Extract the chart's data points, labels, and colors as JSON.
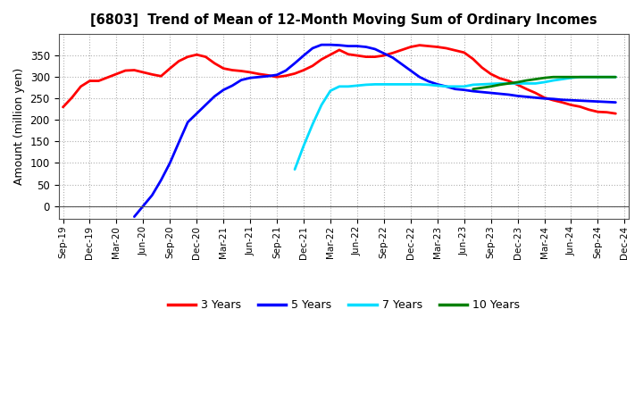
{
  "title": "[6803]  Trend of Mean of 12-Month Moving Sum of Ordinary Incomes",
  "ylabel": "Amount (million yen)",
  "ylim": [
    -30,
    400
  ],
  "yticks": [
    0,
    50,
    100,
    150,
    200,
    250,
    300,
    350
  ],
  "background_color": "#ffffff",
  "grid_color": "#b0b0b0",
  "series": {
    "3 Years": {
      "color": "#ff0000",
      "x": [
        0,
        1,
        2,
        3,
        4,
        5,
        6,
        7,
        8,
        9,
        10,
        11,
        12,
        13,
        14,
        15,
        16,
        17,
        18,
        19,
        20,
        21,
        22,
        23,
        24,
        25,
        26,
        27,
        28,
        29,
        30,
        31,
        32,
        33,
        34,
        35,
        36,
        37,
        38,
        39,
        40,
        41,
        42,
        43,
        44,
        45,
        46,
        47,
        48,
        49,
        50,
        51,
        52,
        53,
        54,
        55,
        56,
        57,
        58,
        59,
        60,
        61,
        62
      ],
      "y": [
        230,
        252,
        278,
        291,
        291,
        299,
        307,
        315,
        316,
        311,
        306,
        302,
        320,
        337,
        347,
        352,
        347,
        332,
        320,
        316,
        314,
        311,
        307,
        304,
        300,
        303,
        308,
        316,
        326,
        341,
        352,
        363,
        353,
        350,
        347,
        347,
        350,
        356,
        363,
        370,
        374,
        372,
        370,
        367,
        362,
        357,
        342,
        322,
        307,
        297,
        291,
        282,
        272,
        263,
        252,
        246,
        241,
        235,
        231,
        224,
        219,
        218,
        215
      ]
    },
    "5 Years": {
      "color": "#0000ff",
      "x": [
        8,
        9,
        10,
        11,
        12,
        13,
        14,
        15,
        16,
        17,
        18,
        19,
        20,
        21,
        22,
        23,
        24,
        25,
        26,
        27,
        28,
        29,
        30,
        31,
        32,
        33,
        34,
        35,
        36,
        37,
        38,
        39,
        40,
        41,
        42,
        43,
        44,
        45,
        46,
        47,
        48,
        49,
        50,
        51,
        52,
        53,
        54,
        55,
        56,
        57,
        58,
        59,
        60,
        61,
        62
      ],
      "y": [
        -25,
        0,
        25,
        60,
        100,
        148,
        195,
        215,
        235,
        255,
        270,
        280,
        293,
        298,
        300,
        302,
        305,
        315,
        332,
        350,
        367,
        375,
        375,
        374,
        372,
        372,
        370,
        365,
        355,
        345,
        330,
        315,
        300,
        290,
        283,
        278,
        272,
        270,
        267,
        265,
        263,
        261,
        259,
        256,
        254,
        252,
        250,
        249,
        247,
        246,
        245,
        244,
        243,
        242,
        241
      ]
    },
    "7 Years": {
      "color": "#00ddff",
      "x": [
        26,
        27,
        28,
        29,
        30,
        31,
        32,
        33,
        34,
        35,
        36,
        37,
        38,
        39,
        40,
        41,
        42,
        43,
        44,
        45,
        46,
        47,
        48,
        49,
        50,
        51,
        52,
        53,
        54,
        55,
        56,
        57,
        58,
        59,
        60,
        61,
        62
      ],
      "y": [
        85,
        140,
        190,
        235,
        268,
        278,
        278,
        280,
        282,
        283,
        283,
        283,
        283,
        283,
        283,
        282,
        280,
        278,
        278,
        278,
        282,
        283,
        284,
        285,
        285,
        285,
        285,
        285,
        288,
        292,
        295,
        298,
        300,
        300,
        300,
        300,
        300
      ]
    },
    "10 Years": {
      "color": "#008000",
      "x": [
        46,
        47,
        48,
        49,
        50,
        51,
        52,
        53,
        54,
        55,
        56,
        57,
        58,
        59,
        60,
        61,
        62
      ],
      "y": [
        272,
        275,
        278,
        282,
        285,
        288,
        292,
        295,
        298,
        300,
        300,
        300,
        300,
        300,
        300,
        300,
        300
      ]
    }
  },
  "xtick_labels": [
    "Sep-19",
    "Dec-19",
    "Mar-20",
    "Jun-20",
    "Sep-20",
    "Dec-20",
    "Mar-21",
    "Jun-21",
    "Sep-21",
    "Dec-21",
    "Mar-22",
    "Jun-22",
    "Sep-22",
    "Dec-22",
    "Mar-23",
    "Jun-23",
    "Sep-23",
    "Dec-23",
    "Mar-24",
    "Jun-24",
    "Sep-24",
    "Dec-24"
  ],
  "xtick_positions": [
    0,
    3,
    6,
    9,
    12,
    15,
    18,
    21,
    24,
    27,
    30,
    33,
    36,
    39,
    42,
    45,
    48,
    51,
    54,
    57,
    60,
    63
  ],
  "legend_labels": [
    "3 Years",
    "5 Years",
    "7 Years",
    "10 Years"
  ],
  "legend_colors": [
    "#ff0000",
    "#0000ff",
    "#00ddff",
    "#008000"
  ]
}
